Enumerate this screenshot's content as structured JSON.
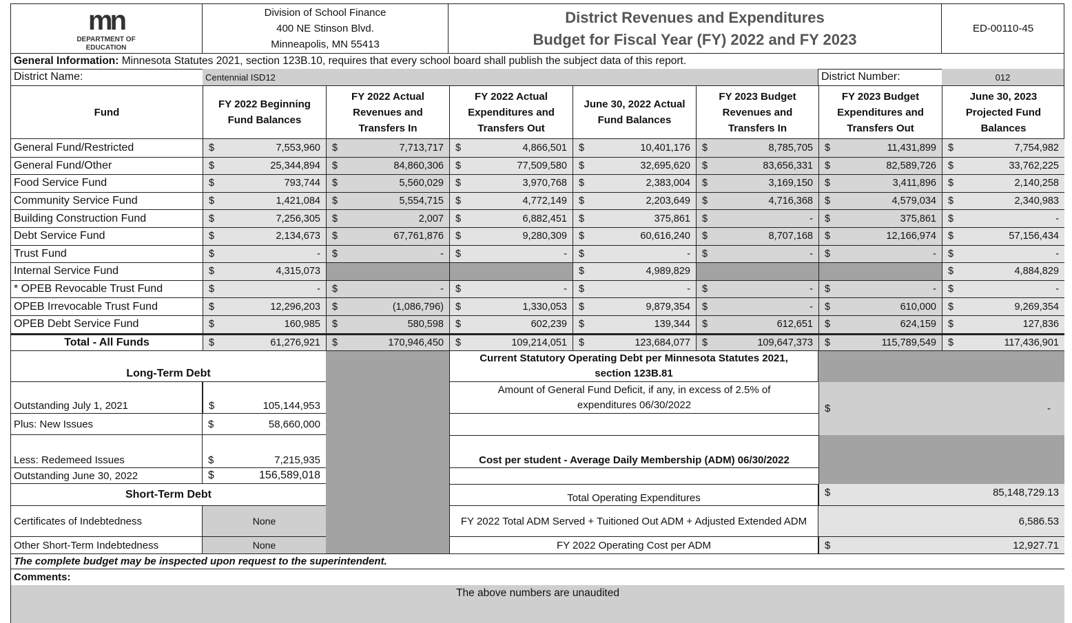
{
  "header": {
    "logo_text": "DEPARTMENT OF EDUCATION",
    "logo_mark": "mn",
    "address": [
      "Division of School Finance",
      "400 NE Stinson Blvd.",
      "Minneapolis, MN 55413"
    ],
    "title_line1": "District Revenues and Expenditures",
    "title_line2": "Budget for Fiscal Year (FY) 2022 and FY 2023",
    "form_id": "ED-00110-45"
  },
  "general_info": {
    "label": "General Information:",
    "text": " Minnesota Statutes 2021, section 123B.10, requires that every school board shall publish the subject data of this report."
  },
  "district": {
    "name_label": "District Name:",
    "name": "Centennial ISD12",
    "number_label": "District Number:",
    "number": "012"
  },
  "columns": [
    "Fund",
    "FY 2022 Beginning Fund Balances",
    "FY 2022 Actual Revenues and Transfers In",
    "FY 2022 Actual Expenditures and Transfers Out",
    "June 30, 2022 Actual Fund Balances",
    "FY 2023 Budget Revenues and Transfers In",
    "FY 2023 Budget Expenditures and Transfers Out",
    "June 30, 2023 Projected Fund Balances"
  ],
  "currency": "$",
  "rows": [
    {
      "fund": "General Fund/Restricted",
      "values": [
        "7,553,960",
        "7,713,717",
        "4,866,501",
        "10,401,176",
        "8,785,705",
        "11,431,899",
        "7,754,982"
      ]
    },
    {
      "fund": "General Fund/Other",
      "values": [
        "25,344,894",
        "84,860,306",
        "77,509,580",
        "32,695,620",
        "83,656,331",
        "82,589,726",
        "33,762,225"
      ]
    },
    {
      "fund": "Food Service Fund",
      "values": [
        "793,744",
        "5,560,029",
        "3,970,768",
        "2,383,004",
        "3,169,150",
        "3,411,896",
        "2,140,258"
      ]
    },
    {
      "fund": "Community Service Fund",
      "values": [
        "1,421,084",
        "5,554,715",
        "4,772,149",
        "2,203,649",
        "4,716,368",
        "4,579,034",
        "2,340,983"
      ]
    },
    {
      "fund": "Building Construction Fund",
      "values": [
        "7,256,305",
        "2,007",
        "6,882,451",
        "375,861",
        "-",
        "375,861",
        "-"
      ]
    },
    {
      "fund": "Debt Service Fund",
      "values": [
        "2,134,673",
        "67,761,876",
        "9,280,309",
        "60,616,240",
        "8,707,168",
        "12,166,974",
        "57,156,434"
      ]
    },
    {
      "fund": "Trust Fund",
      "values": [
        "-",
        "-",
        "-",
        "-",
        "-",
        "-",
        "-"
      ]
    },
    {
      "fund": "Internal Service Fund",
      "values": [
        "4,315,073",
        null,
        null,
        "4,989,829",
        null,
        null,
        "4,884,829"
      ]
    },
    {
      "fund": "* OPEB Revocable Trust Fund",
      "values": [
        "-",
        "-",
        "-",
        "-",
        "-",
        "-",
        "-"
      ]
    },
    {
      "fund": "OPEB Irrevocable Trust Fund",
      "values": [
        "12,296,203",
        "(1,086,796)",
        "1,330,053",
        "9,879,354",
        "-",
        "610,000",
        "9,269,354"
      ]
    },
    {
      "fund": "OPEB Debt Service Fund",
      "values": [
        "160,985",
        "580,598",
        "602,239",
        "139,344",
        "612,651",
        "624,159",
        "127,836"
      ]
    },
    {
      "fund": "Total - All Funds",
      "values": [
        "61,276,921",
        "170,946,450",
        "109,214,051",
        "123,684,077",
        "109,647,373",
        "115,789,549",
        "117,436,901"
      ]
    }
  ],
  "long_term_debt": {
    "title": "Long-Term Debt",
    "items": [
      {
        "label": "Outstanding July 1, 2021",
        "value": "105,144,953"
      },
      {
        "label": "Plus: New Issues",
        "value": "58,660,000"
      },
      {
        "label": "Less: Redemeed Issues",
        "value": "7,215,935"
      },
      {
        "label": "Outstanding June 30, 2022",
        "value": "156,589,018"
      }
    ]
  },
  "short_term_debt": {
    "title": "Short-Term Debt",
    "items": [
      {
        "label": "Certificates of Indebtedness",
        "value": "None"
      },
      {
        "label": "Other Short-Term Indebtedness",
        "value": "None"
      }
    ]
  },
  "statutory": {
    "title": "Current Statutory Operating Debt per Minnesota Statutes 2021, section 123B.81",
    "deficit_label": "Amount of General Fund Deficit, if any, in excess of 2.5% of expenditures 06/30/2022",
    "deficit_value": "-",
    "cost_title": "Cost per student - Average Daily Membership (ADM) 06/30/2022",
    "total_exp_label": "Total Operating Expenditures",
    "total_exp_value": "85,148,729.13",
    "adm_label": "FY 2022 Total ADM Served + Tuitioned Out ADM + Adjusted Extended ADM",
    "adm_value": "6,586.53",
    "cost_label": "FY 2022 Operating Cost per ADM",
    "cost_value": "12,927.71"
  },
  "footer": {
    "note": "The complete budget may be inspected upon request to the superintendent.",
    "comments_label": "Comments:",
    "comments": "The above numbers are unaudited"
  }
}
